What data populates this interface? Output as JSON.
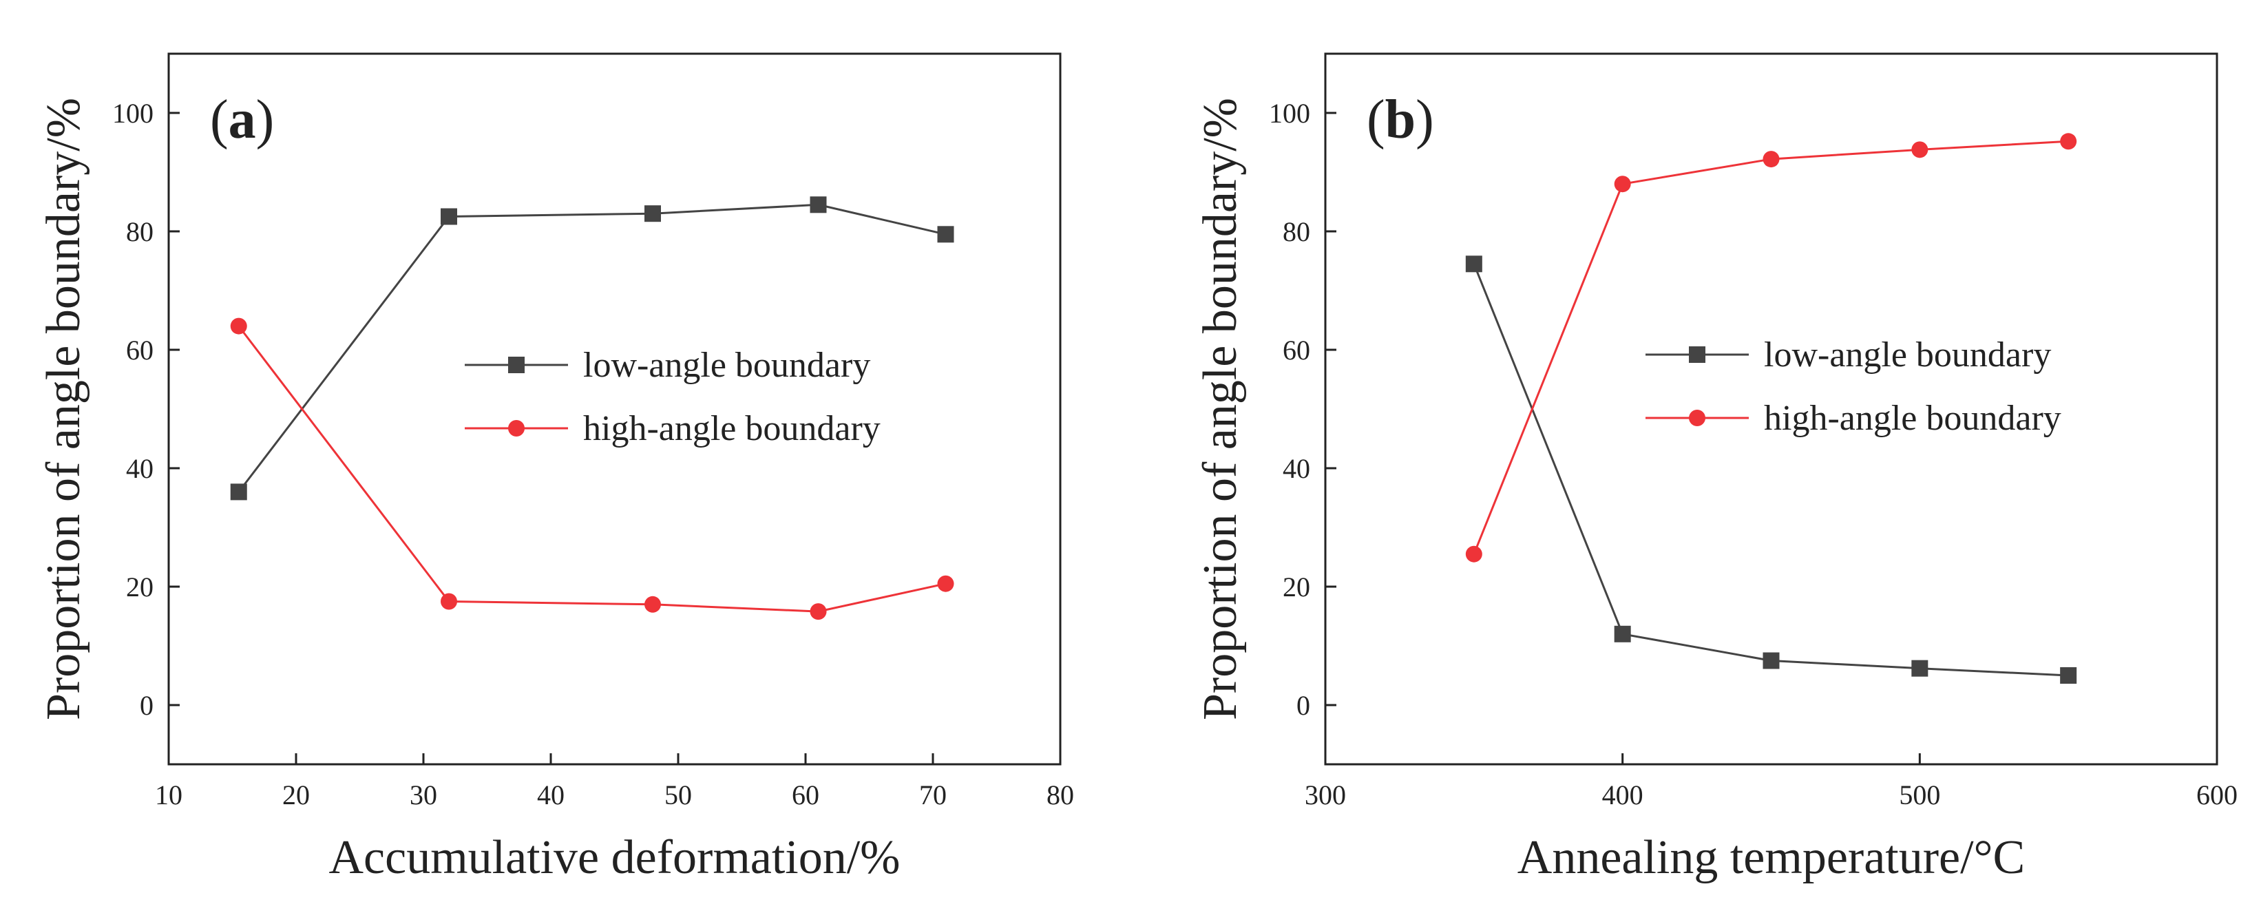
{
  "chart_data": [
    {
      "type": "line",
      "panel_label": "a",
      "title": "",
      "xlabel": "Accumulative deformation/%",
      "ylabel": "Proportion of angle boundary/%",
      "xlim": [
        10,
        80
      ],
      "ylim": [
        -10,
        110
      ],
      "xticks": [
        10,
        20,
        30,
        40,
        50,
        60,
        70,
        80
      ],
      "yticks": [
        0,
        20,
        40,
        60,
        80,
        100
      ],
      "grid": false,
      "legend_position": "center-right",
      "x": [
        15.5,
        32,
        48,
        61,
        71
      ],
      "series": [
        {
          "name": "low-angle boundary",
          "marker": "square",
          "color": "#444444",
          "values": [
            36,
            82.5,
            83,
            84.5,
            79.5
          ]
        },
        {
          "name": "high-angle boundary",
          "marker": "circle",
          "color": "#ee3338",
          "values": [
            64,
            17.5,
            17,
            15.8,
            20.5
          ]
        }
      ]
    },
    {
      "type": "line",
      "panel_label": "b",
      "title": "",
      "xlabel": "Annealing temperature/°C",
      "ylabel": "Proportion of angle boundary/%",
      "xlim": [
        300,
        600
      ],
      "ylim": [
        -10,
        110
      ],
      "xticks": [
        300,
        400,
        500,
        600
      ],
      "yticks": [
        0,
        20,
        40,
        60,
        80,
        100
      ],
      "grid": false,
      "legend_position": "center-right",
      "x": [
        350,
        400,
        450,
        500,
        550
      ],
      "series": [
        {
          "name": "low-angle boundary",
          "marker": "square",
          "color": "#444444",
          "values": [
            74.5,
            12,
            7.5,
            6.2,
            5
          ]
        },
        {
          "name": "high-angle boundary",
          "marker": "circle",
          "color": "#ee3338",
          "values": [
            25.5,
            88,
            92.2,
            93.8,
            95.2
          ]
        }
      ]
    }
  ]
}
